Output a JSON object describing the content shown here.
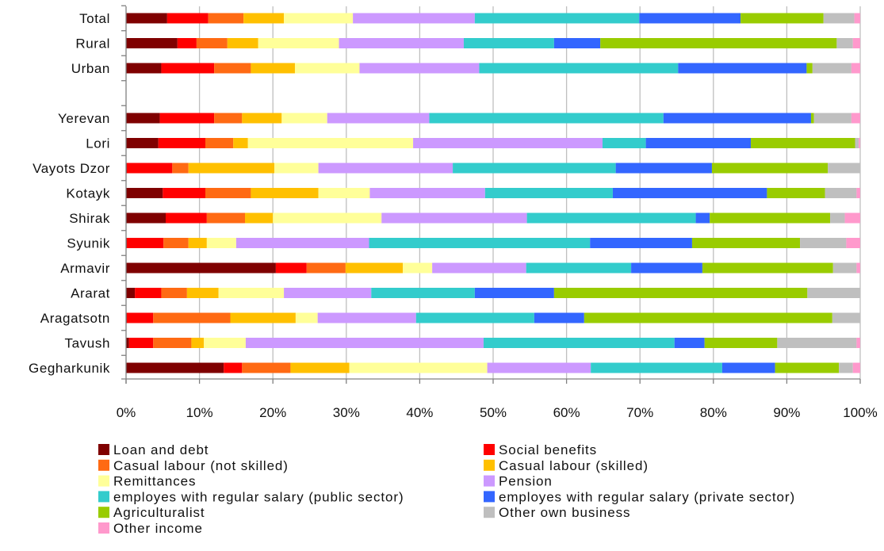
{
  "chart_data": {
    "type": "bar",
    "orientation": "horizontal",
    "stacked": "100%",
    "categories": [
      "Total",
      "Rural",
      "Urban",
      "",
      "Yerevan",
      "Lori",
      "Vayots Dzor",
      "Kotayk",
      "Shirak",
      "Syunik",
      "Armavir",
      "Ararat",
      "Aragatsotn",
      "Tavush",
      "Gegharkunik"
    ],
    "series": [
      {
        "name": "Loan and debt",
        "color": "#7F0000",
        "values": [
          5.6,
          7.0,
          4.8,
          0,
          4.6,
          4.4,
          0.1,
          5.0,
          5.4,
          0.1,
          20.4,
          1.2,
          0.1,
          0.4,
          13.3
        ]
      },
      {
        "name": "Social benefits",
        "color": "#FF0000",
        "values": [
          5.6,
          2.6,
          7.2,
          0,
          7.4,
          6.4,
          6.2,
          5.8,
          5.6,
          5.0,
          4.2,
          3.6,
          3.6,
          3.3,
          2.5
        ]
      },
      {
        "name": "Casual labour (not skilled)",
        "color": "#FF6A13",
        "values": [
          4.8,
          4.2,
          5.0,
          0,
          3.8,
          3.8,
          2.2,
          6.2,
          5.2,
          3.4,
          5.3,
          3.5,
          10.5,
          5.2,
          6.6
        ]
      },
      {
        "name": "Casual labour (skilled)",
        "color": "#FFC000",
        "values": [
          5.5,
          4.2,
          6.0,
          0,
          5.4,
          2.0,
          11.7,
          9.2,
          3.8,
          2.5,
          7.8,
          4.3,
          8.9,
          1.7,
          8.0
        ]
      },
      {
        "name": "Remittances",
        "color": "#FFFF99",
        "values": [
          9.4,
          11.0,
          8.8,
          0,
          6.2,
          22.5,
          6.0,
          7.0,
          14.8,
          4.0,
          4.0,
          8.9,
          3.0,
          5.7,
          18.8
        ]
      },
      {
        "name": "Pension",
        "color": "#CC99FF",
        "values": [
          16.6,
          17.0,
          16.3,
          0,
          13.9,
          25.8,
          18.3,
          15.7,
          19.8,
          18.1,
          12.8,
          11.9,
          13.4,
          32.4,
          14.1
        ]
      },
      {
        "name": "employes with regular salary (public sector)",
        "color": "#33CCCC",
        "values": [
          22.4,
          12.3,
          27.1,
          0,
          31.9,
          5.9,
          22.2,
          17.4,
          23.0,
          30.1,
          14.3,
          14.1,
          16.1,
          26.0,
          17.9
        ]
      },
      {
        "name": "employes with regular salary (private sector)",
        "color": "#3366FF",
        "values": [
          13.8,
          6.3,
          17.5,
          0,
          20.1,
          14.3,
          13.1,
          21.0,
          1.9,
          13.9,
          9.7,
          10.8,
          6.8,
          4.1,
          7.2
        ]
      },
      {
        "name": "Agriculturalist",
        "color": "#99CC00",
        "values": [
          11.3,
          32.2,
          0.8,
          0,
          0.4,
          14.2,
          15.8,
          7.9,
          16.4,
          14.7,
          17.8,
          34.5,
          33.8,
          9.9,
          8.7
        ]
      },
      {
        "name": "Other own business",
        "color": "#BFBFBF",
        "values": [
          4.2,
          2.2,
          5.3,
          0,
          5.1,
          0.5,
          4.4,
          4.3,
          2.0,
          6.3,
          3.2,
          7.2,
          3.8,
          10.8,
          1.9
        ]
      },
      {
        "name": "Other income",
        "color": "#FF99CC",
        "values": [
          0.8,
          1.0,
          1.2,
          0,
          1.2,
          0.2,
          0.0,
          0.5,
          2.1,
          1.9,
          0.5,
          0.0,
          0.0,
          0.5,
          1.0
        ]
      }
    ],
    "x_ticks": [
      "0%",
      "10%",
      "20%",
      "30%",
      "40%",
      "50%",
      "60%",
      "70%",
      "80%",
      "90%",
      "100%"
    ],
    "xlim": [
      0,
      100
    ],
    "grid": true,
    "legend_position": "bottom"
  }
}
